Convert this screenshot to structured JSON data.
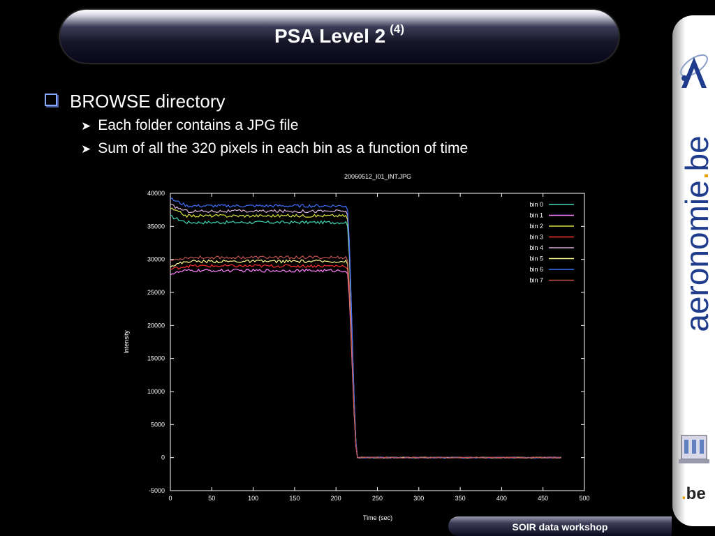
{
  "slide": {
    "title": "PSA Level 2",
    "title_superscript": "(4)",
    "bullets": {
      "main": "BROWSE directory",
      "sub": [
        "Each folder contains a JPG file",
        "Sum of all the 320 pixels in each bin as a function of time"
      ]
    },
    "footer": "SOIR data workshop",
    "brand": {
      "prefix": "aeronomie",
      "dot": ".",
      "suffix": "be"
    },
    "be_logo": {
      "dot": ".",
      "text": "be"
    },
    "colors": {
      "brand_blue": "#1f3b8c",
      "accent_orange": "#e8a000"
    }
  },
  "chart_data": {
    "type": "line",
    "title": "20060512_I01_INT.JPG",
    "xlabel": "Time (sec)",
    "ylabel": "Intensity",
    "xlim": [
      0,
      500
    ],
    "ylim": [
      -5000,
      40000
    ],
    "xticks": [
      0,
      50,
      100,
      150,
      200,
      250,
      300,
      350,
      400,
      450,
      500
    ],
    "yticks": [
      -5000,
      0,
      5000,
      10000,
      15000,
      20000,
      25000,
      30000,
      35000,
      40000
    ],
    "legend_position": "top-right",
    "grid": false,
    "x_end": 473,
    "drop_start": 213,
    "drop_end": 226,
    "series": [
      {
        "name": "bin 0",
        "color": "#40d8b8",
        "start": 36500,
        "plateau": 35600
      },
      {
        "name": "bin 1",
        "color": "#ff80ff",
        "start": 27800,
        "plateau": 28300
      },
      {
        "name": "bin 2",
        "color": "#d8e040",
        "start": 37700,
        "plateau": 36600
      },
      {
        "name": "bin 3",
        "color": "#ff3030",
        "start": 28500,
        "plateau": 29000
      },
      {
        "name": "bin 4",
        "color": "#d8b0d8",
        "start": 38200,
        "plateau": 37300
      },
      {
        "name": "bin 5",
        "color": "#ffff90",
        "start": 29000,
        "plateau": 29700
      },
      {
        "name": "bin 6",
        "color": "#4070ff",
        "start": 39200,
        "plateau": 38100
      },
      {
        "name": "bin 7",
        "color": "#c05050",
        "start": 29800,
        "plateau": 30300
      }
    ]
  }
}
